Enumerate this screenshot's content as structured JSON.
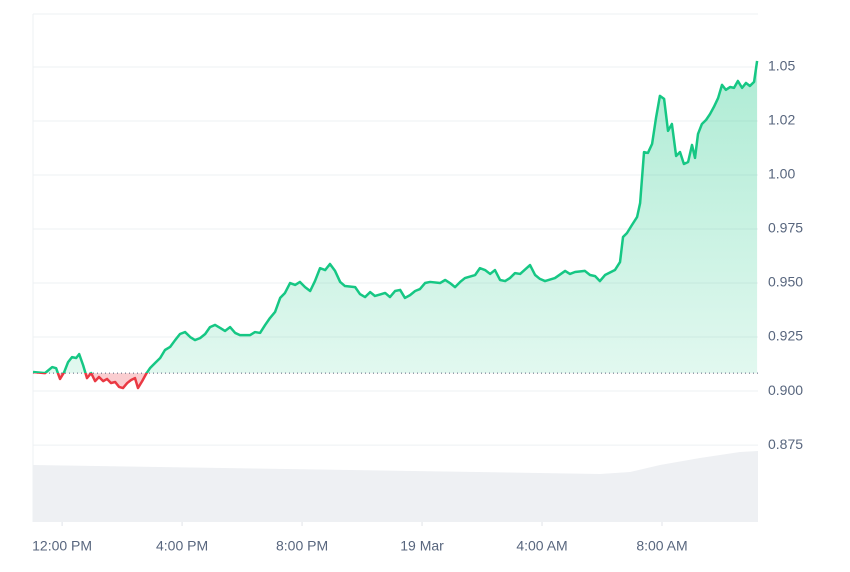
{
  "chart_data": {
    "type": "line",
    "xlim": [
      -0.97,
      23.2
    ],
    "ylim": [
      0.8394,
      1.0745
    ],
    "xticks": [
      {
        "value": 0,
        "label": "12:00 PM"
      },
      {
        "value": 4,
        "label": "4:00 PM"
      },
      {
        "value": 8,
        "label": "8:00 PM"
      },
      {
        "value": 12,
        "label": "19 Mar"
      },
      {
        "value": 16,
        "label": "4:00 AM"
      },
      {
        "value": 20,
        "label": "8:00 AM"
      }
    ],
    "yticks": [
      0.875,
      0.925,
      0.975,
      {
        "value": 0.9,
        "label": "0.900"
      },
      {
        "value": 0.95,
        "label": "0.950"
      },
      {
        "value": 1,
        "label": "1.00"
      },
      {
        "value": 1.025,
        "label": "1.02"
      },
      1.05
    ],
    "grid": true,
    "baseline": 0.9083,
    "up_color": "#16c784",
    "down_color": "#ea3943",
    "x": [
      -0.97,
      -0.57,
      -0.33,
      -0.2,
      -0.07,
      0.07,
      0.2,
      0.33,
      0.47,
      0.57,
      0.7,
      0.83,
      0.97,
      1.1,
      1.23,
      1.37,
      1.5,
      1.63,
      1.77,
      1.9,
      2.03,
      2.17,
      2.3,
      2.43,
      2.53,
      2.67,
      2.8,
      2.93,
      3.1,
      3.27,
      3.43,
      3.6,
      3.77,
      3.93,
      4.1,
      4.27,
      4.43,
      4.6,
      4.77,
      4.93,
      5.1,
      5.27,
      5.43,
      5.6,
      5.77,
      5.93,
      6.27,
      6.43,
      6.6,
      6.77,
      6.93,
      7.1,
      7.27,
      7.43,
      7.6,
      7.77,
      7.93,
      8.1,
      8.27,
      8.43,
      8.6,
      8.77,
      8.93,
      9.1,
      9.27,
      9.43,
      9.77,
      9.93,
      10.1,
      10.27,
      10.43,
      10.77,
      10.93,
      11.1,
      11.27,
      11.43,
      11.6,
      11.77,
      11.93,
      12.1,
      12.27,
      12.6,
      12.77,
      12.93,
      13.1,
      13.27,
      13.43,
      13.77,
      13.93,
      14.1,
      14.27,
      14.43,
      14.6,
      14.77,
      14.93,
      15.1,
      15.27,
      15.6,
      15.77,
      15.93,
      16.1,
      16.43,
      16.77,
      16.93,
      17.1,
      17.43,
      17.6,
      17.77,
      17.93,
      18.1,
      18.43,
      18.6,
      18.7,
      18.83,
      19.0,
      19.17,
      19.27,
      19.4,
      19.53,
      19.67,
      19.8,
      19.93,
      20.07,
      20.2,
      20.33,
      20.47,
      20.6,
      20.73,
      20.87,
      21.0,
      21.1,
      21.2,
      21.33,
      21.47,
      21.6,
      21.73,
      21.87,
      22.0,
      22.13,
      22.27,
      22.4,
      22.53,
      22.67,
      22.8,
      22.93,
      23.07,
      23.17
    ],
    "values": [
      0.9088,
      0.9083,
      0.9111,
      0.9106,
      0.9056,
      0.9088,
      0.9134,
      0.9157,
      0.9153,
      0.9171,
      0.912,
      0.906,
      0.9083,
      0.9046,
      0.9065,
      0.9046,
      0.9056,
      0.9037,
      0.9042,
      0.9019,
      0.9014,
      0.9037,
      0.9051,
      0.906,
      0.9014,
      0.9046,
      0.9079,
      0.9106,
      0.913,
      0.9153,
      0.919,
      0.9204,
      0.9236,
      0.9264,
      0.9273,
      0.925,
      0.9236,
      0.9245,
      0.9264,
      0.9296,
      0.9306,
      0.9292,
      0.9278,
      0.9296,
      0.9269,
      0.9259,
      0.9259,
      0.9273,
      0.9269,
      0.9306,
      0.9338,
      0.9366,
      0.9431,
      0.9454,
      0.95,
      0.9491,
      0.9505,
      0.9481,
      0.9463,
      0.9509,
      0.9569,
      0.956,
      0.9588,
      0.9556,
      0.9505,
      0.9486,
      0.9481,
      0.9449,
      0.9435,
      0.9458,
      0.944,
      0.9454,
      0.9435,
      0.9463,
      0.9468,
      0.9431,
      0.9444,
      0.9463,
      0.9472,
      0.95,
      0.9505,
      0.95,
      0.9514,
      0.95,
      0.9481,
      0.9505,
      0.9523,
      0.9537,
      0.9569,
      0.956,
      0.9542,
      0.956,
      0.9514,
      0.9509,
      0.9523,
      0.9546,
      0.9542,
      0.9583,
      0.9537,
      0.9519,
      0.9509,
      0.9523,
      0.9556,
      0.9542,
      0.9551,
      0.9556,
      0.9537,
      0.9532,
      0.9509,
      0.9537,
      0.956,
      0.9597,
      0.9713,
      0.9731,
      0.9769,
      0.9806,
      0.987,
      1.0106,
      1.0102,
      1.0144,
      1.0264,
      1.0366,
      1.0352,
      1.0204,
      1.0236,
      1.0088,
      1.0106,
      1.0051,
      1.006,
      1.0139,
      1.0079,
      1.019,
      1.0236,
      1.0255,
      1.0282,
      1.0315,
      1.0356,
      1.0417,
      1.0394,
      1.0407,
      1.0403,
      1.0435,
      1.0403,
      1.0426,
      1.0412,
      1.0431,
      1.0528
    ]
  }
}
